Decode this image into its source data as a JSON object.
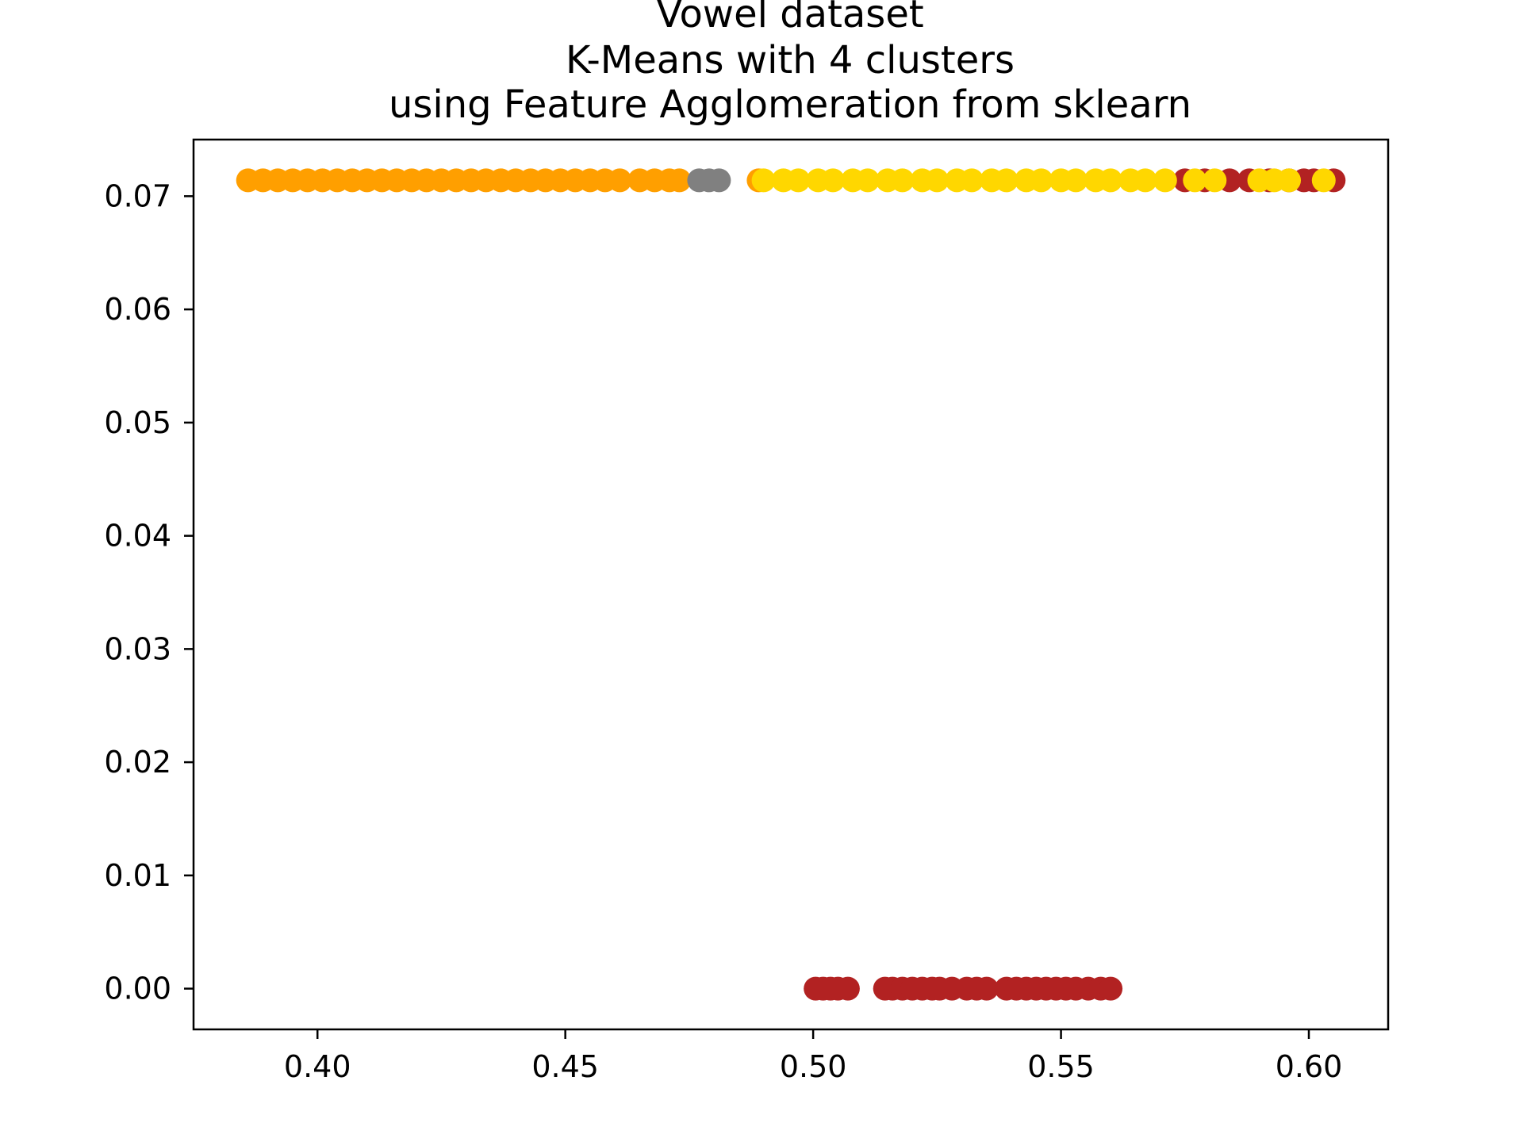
{
  "chart_data": {
    "type": "scatter",
    "title_lines": [
      "Vowel dataset",
      "K-Means with 4 clusters",
      "using Feature Agglomeration from sklearn"
    ],
    "xlabel": "",
    "ylabel": "",
    "xlim": [
      0.375,
      0.616
    ],
    "ylim": [
      -0.0036,
      0.075
    ],
    "x_ticks": [
      "0.40",
      "0.45",
      "0.50",
      "0.55",
      "0.60"
    ],
    "y_ticks": [
      "0.00",
      "0.01",
      "0.02",
      "0.03",
      "0.04",
      "0.05",
      "0.06",
      "0.07"
    ],
    "grid": false,
    "legend": "none",
    "series": [
      {
        "color": "#ff9f00",
        "points": [
          {
            "x": 0.386,
            "y": 0.0714
          },
          {
            "x": 0.389,
            "y": 0.0714
          },
          {
            "x": 0.392,
            "y": 0.0714
          },
          {
            "x": 0.395,
            "y": 0.0714
          },
          {
            "x": 0.398,
            "y": 0.0714
          },
          {
            "x": 0.401,
            "y": 0.0714
          },
          {
            "x": 0.404,
            "y": 0.0714
          },
          {
            "x": 0.407,
            "y": 0.0714
          },
          {
            "x": 0.41,
            "y": 0.0714
          },
          {
            "x": 0.413,
            "y": 0.0714
          },
          {
            "x": 0.416,
            "y": 0.0714
          },
          {
            "x": 0.419,
            "y": 0.0714
          },
          {
            "x": 0.422,
            "y": 0.0714
          },
          {
            "x": 0.425,
            "y": 0.0714
          },
          {
            "x": 0.428,
            "y": 0.0714
          },
          {
            "x": 0.431,
            "y": 0.0714
          },
          {
            "x": 0.434,
            "y": 0.0714
          },
          {
            "x": 0.437,
            "y": 0.0714
          },
          {
            "x": 0.44,
            "y": 0.0714
          },
          {
            "x": 0.443,
            "y": 0.0714
          },
          {
            "x": 0.446,
            "y": 0.0714
          },
          {
            "x": 0.449,
            "y": 0.0714
          },
          {
            "x": 0.452,
            "y": 0.0714
          },
          {
            "x": 0.455,
            "y": 0.0714
          },
          {
            "x": 0.458,
            "y": 0.0714
          },
          {
            "x": 0.461,
            "y": 0.0714
          },
          {
            "x": 0.465,
            "y": 0.0714
          },
          {
            "x": 0.468,
            "y": 0.0714
          },
          {
            "x": 0.471,
            "y": 0.0714
          },
          {
            "x": 0.473,
            "y": 0.0714
          },
          {
            "x": 0.489,
            "y": 0.0714
          }
        ]
      },
      {
        "color": "#808080",
        "points": [
          {
            "x": 0.477,
            "y": 0.0714
          },
          {
            "x": 0.479,
            "y": 0.0714
          },
          {
            "x": 0.481,
            "y": 0.0714
          }
        ]
      },
      {
        "color": "#b22222",
        "points": [
          {
            "x": 0.575,
            "y": 0.0714
          },
          {
            "x": 0.579,
            "y": 0.0714
          },
          {
            "x": 0.584,
            "y": 0.0714
          },
          {
            "x": 0.588,
            "y": 0.0714
          },
          {
            "x": 0.592,
            "y": 0.0714
          },
          {
            "x": 0.596,
            "y": 0.0714
          },
          {
            "x": 0.599,
            "y": 0.0714
          },
          {
            "x": 0.601,
            "y": 0.0714
          },
          {
            "x": 0.605,
            "y": 0.0714
          },
          {
            "x": 0.5005,
            "y": 0.0
          },
          {
            "x": 0.502,
            "y": 0.0
          },
          {
            "x": 0.5035,
            "y": 0.0
          },
          {
            "x": 0.505,
            "y": 0.0
          },
          {
            "x": 0.507,
            "y": 0.0
          },
          {
            "x": 0.5145,
            "y": 0.0
          },
          {
            "x": 0.516,
            "y": 0.0
          },
          {
            "x": 0.518,
            "y": 0.0
          },
          {
            "x": 0.52,
            "y": 0.0
          },
          {
            "x": 0.522,
            "y": 0.0
          },
          {
            "x": 0.524,
            "y": 0.0
          },
          {
            "x": 0.5255,
            "y": 0.0
          },
          {
            "x": 0.528,
            "y": 0.0
          },
          {
            "x": 0.531,
            "y": 0.0
          },
          {
            "x": 0.533,
            "y": 0.0
          },
          {
            "x": 0.535,
            "y": 0.0
          },
          {
            "x": 0.539,
            "y": 0.0
          },
          {
            "x": 0.541,
            "y": 0.0
          },
          {
            "x": 0.543,
            "y": 0.0
          },
          {
            "x": 0.545,
            "y": 0.0
          },
          {
            "x": 0.547,
            "y": 0.0
          },
          {
            "x": 0.549,
            "y": 0.0
          },
          {
            "x": 0.551,
            "y": 0.0
          },
          {
            "x": 0.553,
            "y": 0.0
          },
          {
            "x": 0.5555,
            "y": 0.0
          },
          {
            "x": 0.558,
            "y": 0.0
          },
          {
            "x": 0.56,
            "y": 0.0
          }
        ]
      },
      {
        "color": "#ffd700",
        "points": [
          {
            "x": 0.49,
            "y": 0.0714
          },
          {
            "x": 0.494,
            "y": 0.0714
          },
          {
            "x": 0.497,
            "y": 0.0714
          },
          {
            "x": 0.501,
            "y": 0.0714
          },
          {
            "x": 0.504,
            "y": 0.0714
          },
          {
            "x": 0.508,
            "y": 0.0714
          },
          {
            "x": 0.511,
            "y": 0.0714
          },
          {
            "x": 0.515,
            "y": 0.0714
          },
          {
            "x": 0.518,
            "y": 0.0714
          },
          {
            "x": 0.522,
            "y": 0.0714
          },
          {
            "x": 0.525,
            "y": 0.0714
          },
          {
            "x": 0.529,
            "y": 0.0714
          },
          {
            "x": 0.532,
            "y": 0.0714
          },
          {
            "x": 0.536,
            "y": 0.0714
          },
          {
            "x": 0.539,
            "y": 0.0714
          },
          {
            "x": 0.543,
            "y": 0.0714
          },
          {
            "x": 0.546,
            "y": 0.0714
          },
          {
            "x": 0.55,
            "y": 0.0714
          },
          {
            "x": 0.553,
            "y": 0.0714
          },
          {
            "x": 0.557,
            "y": 0.0714
          },
          {
            "x": 0.56,
            "y": 0.0714
          },
          {
            "x": 0.564,
            "y": 0.0714
          },
          {
            "x": 0.567,
            "y": 0.0714
          },
          {
            "x": 0.571,
            "y": 0.0714
          },
          {
            "x": 0.577,
            "y": 0.0714
          },
          {
            "x": 0.581,
            "y": 0.0714
          },
          {
            "x": 0.59,
            "y": 0.0714
          },
          {
            "x": 0.593,
            "y": 0.0714
          },
          {
            "x": 0.596,
            "y": 0.0714
          },
          {
            "x": 0.603,
            "y": 0.0714
          }
        ]
      }
    ]
  }
}
